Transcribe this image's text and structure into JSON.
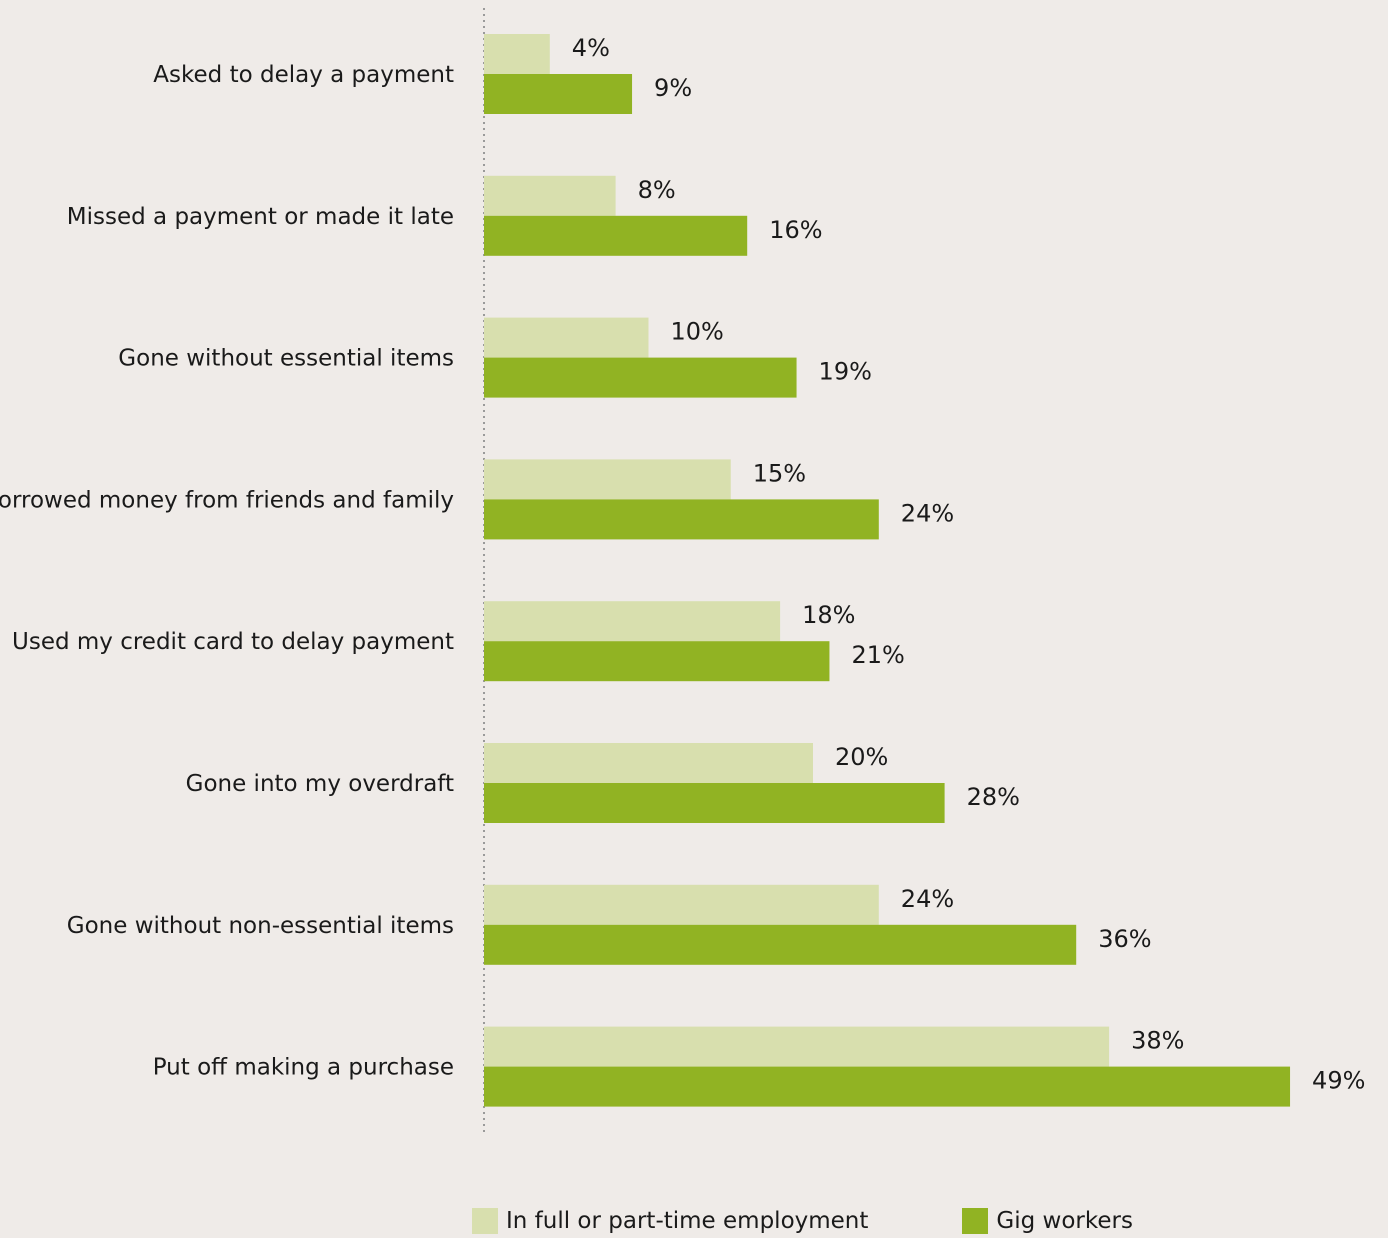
{
  "chart_data": {
    "type": "bar",
    "orientation": "horizontal",
    "categories": [
      "Asked to delay a payment",
      "Missed a payment or made it late",
      "Gone without essential items",
      "Borrowed money from friends and family",
      "Used my credit card to delay payment",
      "Gone into my overdraft",
      "Gone without non-essential items",
      "Put off making a purchase"
    ],
    "series": [
      {
        "name": "In full or part-time employment",
        "color": "#d8dfae",
        "values": [
          4,
          8,
          10,
          15,
          18,
          20,
          24,
          38
        ]
      },
      {
        "name": "Gig workers",
        "color": "#91b323",
        "values": [
          9,
          16,
          19,
          24,
          21,
          28,
          36,
          49
        ]
      }
    ],
    "value_labels": [
      [
        "4%",
        "8%",
        "10%",
        "15%",
        "18%",
        "20%",
        "24%",
        "38%"
      ],
      [
        "9%",
        "16%",
        "19%",
        "24%",
        "21%",
        "28%",
        "36%",
        "49%"
      ]
    ],
    "xlim": [
      0,
      49
    ],
    "grid": false,
    "legend_position": "bottom"
  }
}
